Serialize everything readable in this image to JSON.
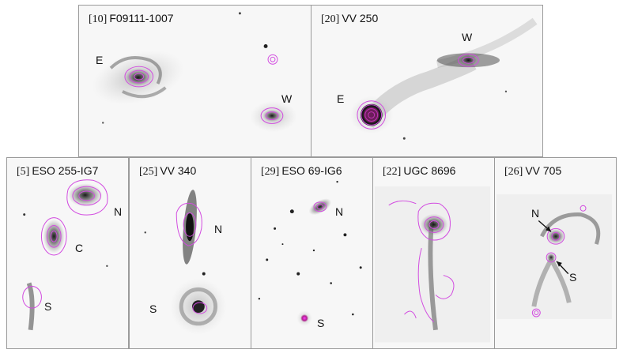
{
  "panels": {
    "p10": {
      "ref": "[10]",
      "name": "F09111-1007",
      "labels": {
        "e": "E",
        "w": "W"
      }
    },
    "p20": {
      "ref": "[20]",
      "name": "VV 250",
      "labels": {
        "w": "W",
        "e": "E"
      }
    },
    "p5": {
      "ref": "[5]",
      "name": "ESO 255-IG7",
      "labels": {
        "n": "N",
        "c": "C",
        "s": "S"
      }
    },
    "p25": {
      "ref": "[25]",
      "name": "VV 340",
      "labels": {
        "n": "N",
        "s": "S"
      }
    },
    "p29": {
      "ref": "[29]",
      "name": "ESO 69-IG6",
      "labels": {
        "n": "N",
        "s": "S"
      }
    },
    "p22": {
      "ref": "[22]",
      "name": "UGC 8696",
      "labels": {}
    },
    "p26": {
      "ref": "[26]",
      "name": "VV 705",
      "labels": {
        "n": "N",
        "s": "S"
      }
    }
  },
  "colors": {
    "contour": "#d24be0",
    "core": "#c21ad6",
    "galaxy": "#1a1a1a",
    "frame": "#9a9a9a"
  }
}
